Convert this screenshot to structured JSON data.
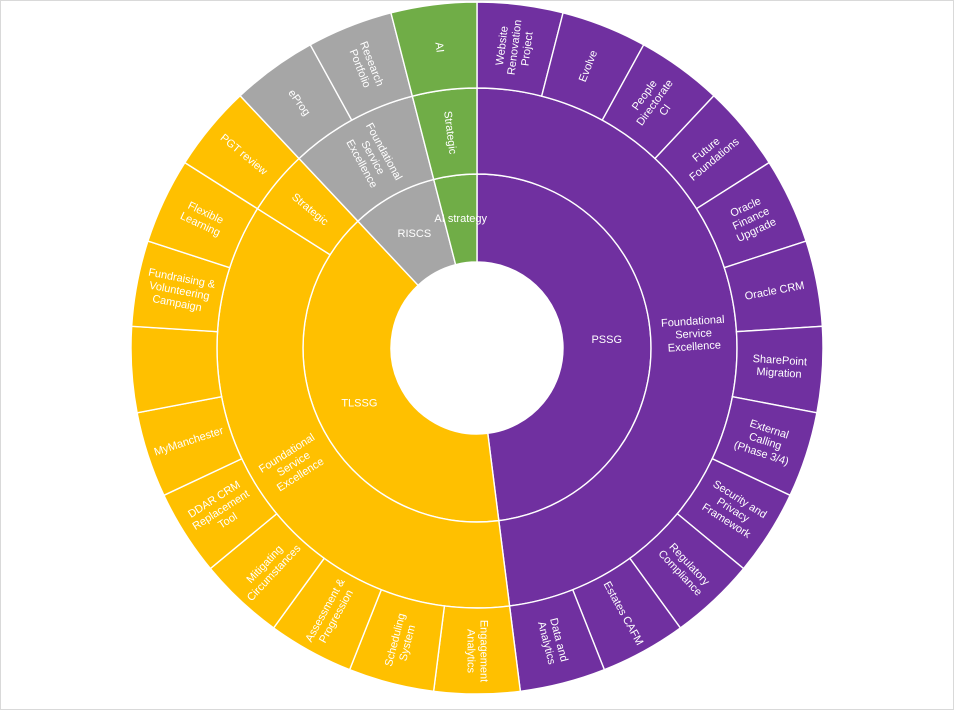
{
  "chart_data": {
    "type": "sunburst",
    "title": "",
    "colors": {
      "PSSG": "#7030A0",
      "TLSSG": "#FFC000",
      "RISCS": "#A6A6A6",
      "AI strategy": "#70AD47",
      "separator": "#FFFFFF",
      "label": "#FFFFFF"
    },
    "root": [
      {
        "name": "PSSG",
        "color_key": "PSSG",
        "children": [
          {
            "name": "Foundational Service Excellence",
            "children": [
              {
                "name": "Website Renovation Project",
                "value": 1
              },
              {
                "name": "Evolve",
                "value": 1
              },
              {
                "name": "People Directorate CI",
                "value": 1
              },
              {
                "name": "Future Foundations",
                "value": 1
              },
              {
                "name": "Oracle Finance Upgrade",
                "value": 1
              },
              {
                "name": "Oracle CRM",
                "value": 1
              },
              {
                "name": "SharePoint Migration",
                "value": 1
              },
              {
                "name": "External Calling (Phase 3/4)",
                "value": 1
              },
              {
                "name": "Security and Privacy Framework",
                "value": 1
              },
              {
                "name": "Regulatory Compliance",
                "value": 1
              },
              {
                "name": "Estates CAFM",
                "value": 1
              },
              {
                "name": "Data and Analytics",
                "value": 1
              }
            ]
          }
        ]
      },
      {
        "name": "TLSSG",
        "color_key": "TLSSG",
        "children": [
          {
            "name": "Foundational Service Excellence",
            "children": [
              {
                "name": "Engagement Analytics",
                "value": 1
              },
              {
                "name": "Scheduling System",
                "value": 1
              },
              {
                "name": "Assessment & Progression",
                "value": 1
              },
              {
                "name": "Mitigating Circumstances",
                "value": 1
              },
              {
                "name": "DDAR CRM Replacement Tool",
                "value": 1
              },
              {
                "name": "MyManchester",
                "value": 1
              },
              {
                "name": "",
                "value": 1
              },
              {
                "name": "Fundraising & Volunteering Campaign",
                "value": 1
              },
              {
                "name": "Flexible Learning",
                "value": 1
              }
            ]
          },
          {
            "name": "Strategic",
            "children": [
              {
                "name": "PGT review",
                "value": 1
              }
            ]
          }
        ]
      },
      {
        "name": "RISCS",
        "color_key": "RISCS",
        "children": [
          {
            "name": "Foundational Service Excellence",
            "children": [
              {
                "name": "eProg",
                "value": 1
              },
              {
                "name": "Research Portfolio",
                "value": 1
              }
            ]
          }
        ]
      },
      {
        "name": "AI strategy",
        "color_key": "AI strategy",
        "children": [
          {
            "name": "Strategic",
            "children": [
              {
                "name": "AI",
                "value": 1
              }
            ]
          }
        ]
      }
    ]
  }
}
